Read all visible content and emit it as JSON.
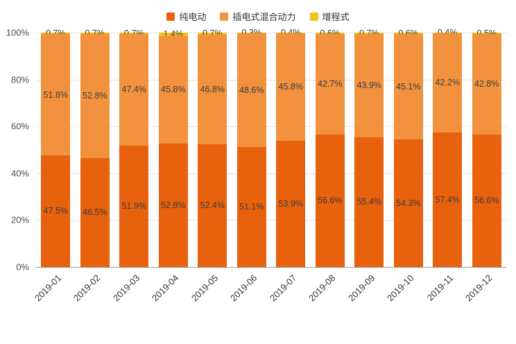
{
  "chart_data": {
    "type": "bar",
    "subtype": "stacked-100-percent",
    "title": "",
    "xlabel": "",
    "ylabel": "",
    "ylim": [
      0,
      100
    ],
    "grid": true,
    "legend_position": "top",
    "value_suffix": "%",
    "y_ticks": [
      0,
      20,
      40,
      60,
      80,
      100
    ],
    "y_tick_labels": [
      "0%",
      "20%",
      "40%",
      "60%",
      "80%",
      "100%"
    ],
    "categories": [
      "2019-01",
      "2019-02",
      "2019-03",
      "2019-04",
      "2019-05",
      "2019-06",
      "2019-07",
      "2019-08",
      "2019-09",
      "2019-10",
      "2019-11",
      "2019-12"
    ],
    "series": [
      {
        "name": "纯电动",
        "color": "#e8610d",
        "values": [
          47.5,
          46.5,
          51.9,
          52.8,
          52.4,
          51.1,
          53.9,
          56.6,
          55.4,
          54.3,
          57.4,
          56.6
        ]
      },
      {
        "name": "插电式混合动力",
        "color": "#f2913e",
        "values": [
          51.8,
          52.8,
          47.4,
          45.8,
          46.8,
          48.6,
          45.8,
          42.7,
          43.9,
          45.1,
          42.2,
          42.8
        ]
      },
      {
        "name": "增程式",
        "color": "#f5c319",
        "values": [
          0.7,
          0.7,
          0.7,
          1.4,
          0.7,
          0.3,
          0.4,
          0.6,
          0.7,
          0.6,
          0.4,
          0.5
        ]
      }
    ],
    "colors": {
      "grid_line": "#e3e3e3",
      "axis_line": "#9a9a9a",
      "label_text": "#3d3d3d",
      "axis_text": "#4d4d4d",
      "background": "#ffffff"
    }
  }
}
